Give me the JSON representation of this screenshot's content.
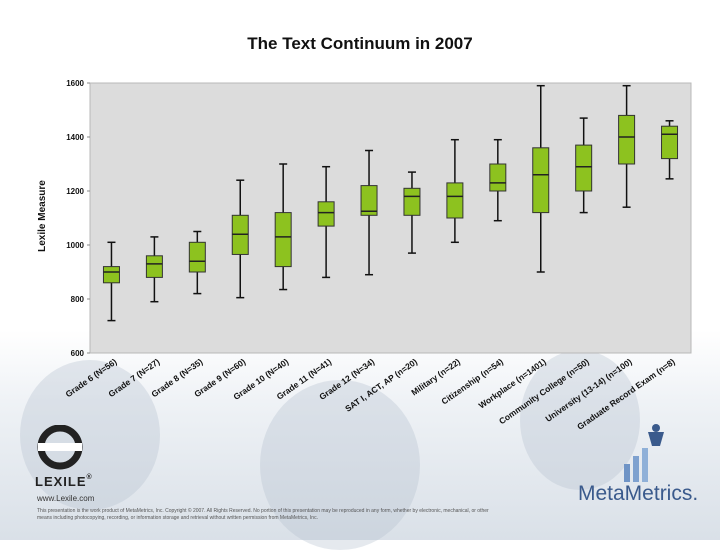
{
  "chart_data": {
    "type": "boxplot",
    "title": "The Text Continuum in 2007",
    "ylabel": "Lexile Measure",
    "xlabel": "",
    "ylim": [
      600,
      1600
    ],
    "yticks": [
      600,
      800,
      1000,
      1200,
      1400,
      1600
    ],
    "grid": false,
    "categories": [
      "Grade 6 (N=56)",
      "Grade 7 (N=27)",
      "Grade 8 (N=35)",
      "Grade 9 (N=60)",
      "Grade 10 (N=40)",
      "Grade 11 (N=41)",
      "Grade 12 (N=34)",
      "SAT I, ACT, AP (n=20)",
      "Military (n=22)",
      "Citizenship (n=54)",
      "Workplace (n=1401)",
      "Community College (n=50)",
      "University (13-14) (n=100)",
      "Graduate Record Exam (n=8)"
    ],
    "boxes": [
      {
        "min": 720,
        "q1": 860,
        "median": 900,
        "q3": 920,
        "max": 1010
      },
      {
        "min": 790,
        "q1": 880,
        "median": 930,
        "q3": 960,
        "max": 1030
      },
      {
        "min": 820,
        "q1": 900,
        "median": 940,
        "q3": 1010,
        "max": 1050
      },
      {
        "min": 805,
        "q1": 965,
        "median": 1040,
        "q3": 1110,
        "max": 1240
      },
      {
        "min": 835,
        "q1": 920,
        "median": 1030,
        "q3": 1120,
        "max": 1300
      },
      {
        "min": 880,
        "q1": 1070,
        "median": 1120,
        "q3": 1160,
        "max": 1290
      },
      {
        "min": 890,
        "q1": 1110,
        "median": 1125,
        "q3": 1220,
        "max": 1350
      },
      {
        "min": 970,
        "q1": 1110,
        "median": 1180,
        "q3": 1210,
        "max": 1270
      },
      {
        "min": 1010,
        "q1": 1100,
        "median": 1180,
        "q3": 1230,
        "max": 1390
      },
      {
        "min": 1090,
        "q1": 1200,
        "median": 1230,
        "q3": 1300,
        "max": 1390
      },
      {
        "min": 900,
        "q1": 1120,
        "median": 1260,
        "q3": 1360,
        "max": 1590
      },
      {
        "min": 1120,
        "q1": 1200,
        "median": 1290,
        "q3": 1370,
        "max": 1470
      },
      {
        "min": 1140,
        "q1": 1300,
        "median": 1400,
        "q3": 1480,
        "max": 1590
      },
      {
        "min": 1245,
        "q1": 1320,
        "median": 1410,
        "q3": 1440,
        "max": 1460
      }
    ],
    "colors": {
      "box_fill": "#8dc21f",
      "box_stroke": "#333333",
      "whisker": "#111111",
      "plot_bg": "#dcdcdc",
      "label": "#111111"
    }
  },
  "footer": {
    "url": "www.Lexile.com",
    "note": "This presentation is the work product of MetaMetrics, Inc. Copyright © 2007. All Rights Reserved. No portion of this presentation may be reproduced in any form, whether by electronic, mechanical, or other means including photocopying, recording, or information storage and retrieval without written permission from MetaMetrics, Inc."
  },
  "logos": {
    "lexile": "LEXILE",
    "registered": "®",
    "metametrics": "MetaMetrics",
    "metametrics_mark": "."
  }
}
